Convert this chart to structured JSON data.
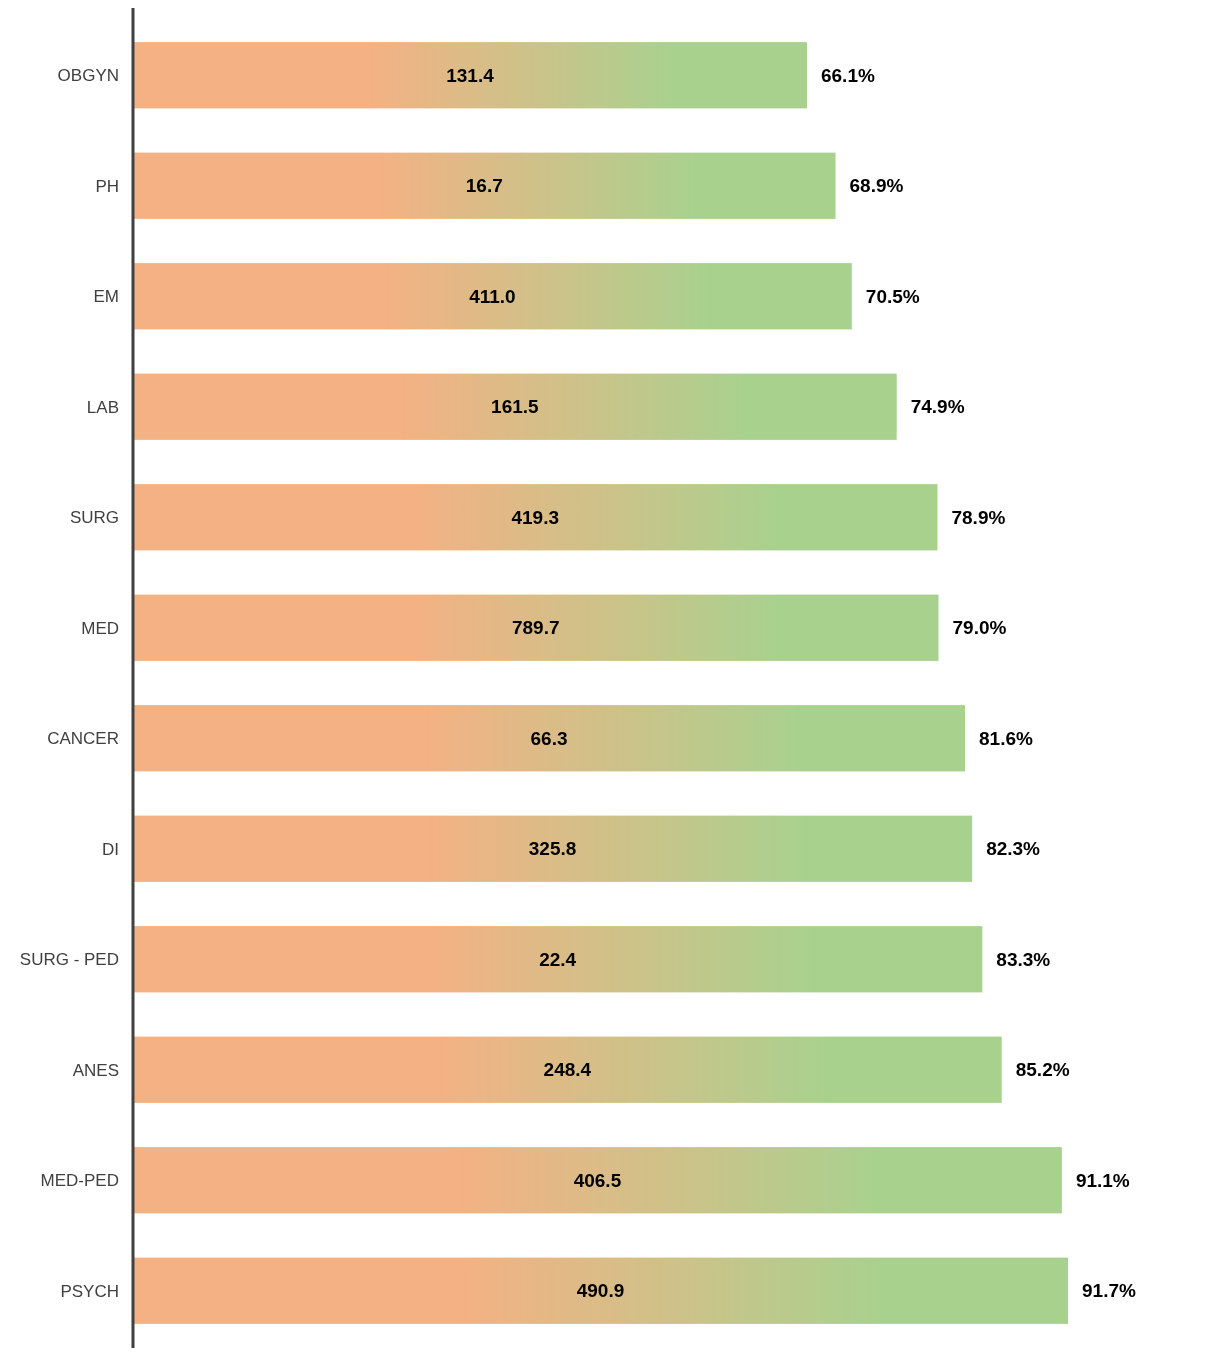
{
  "chart_data": {
    "type": "bar",
    "orientation": "horizontal",
    "tick_labels": "y",
    "categories": [
      "OBGYN",
      "PH",
      "EM",
      "LAB",
      "SURG",
      "MED",
      "CANCER",
      "DI",
      "SURG - PED",
      "ANES",
      "MED-PED",
      "PSYCH"
    ],
    "series": [
      {
        "color": "#f4b183",
        "values": [
          66.1,
          68.9,
          70.5,
          74.9,
          78.9,
          79.0,
          81.6,
          82.3,
          83.3,
          85.2,
          91.1,
          91.7
        ],
        "value_labels": [
          "66.1%",
          "68.9%",
          "70.5%",
          "74.9%",
          "78.9%",
          "79.0%",
          "81.6%",
          "82.3%",
          "83.3%",
          "85.2%",
          "91.1%",
          "91.7%"
        ]
      }
    ],
    "annotations": [
      "131.4",
      "16.7",
      "411.0",
      "161.5",
      "419.3",
      "789.7",
      "66.3",
      "325.8",
      "22.4",
      "248.4",
      "406.5",
      "490.9"
    ]
  }
}
